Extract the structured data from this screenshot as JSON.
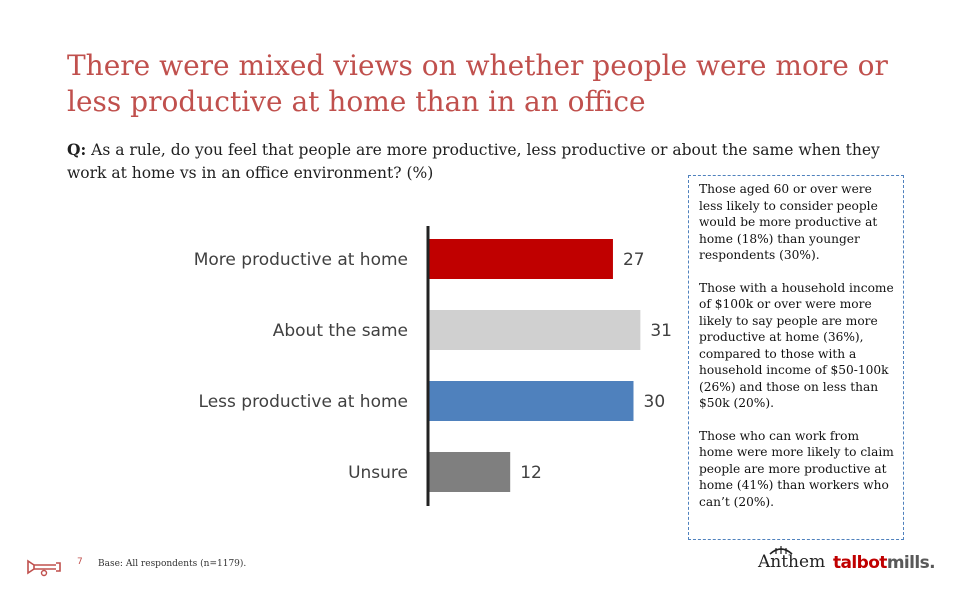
{
  "title": "There were mixed views on whether people were more or less productive at home than in an office",
  "question": {
    "prefix": "Q:",
    "text": "As a rule, do you feel that people are more productive, less productive or about the same when they work at home vs in an office environment? (%)"
  },
  "chart_data": {
    "type": "bar",
    "orientation": "horizontal",
    "categories": [
      "More productive at home",
      "About the same",
      "Less productive at home",
      "Unsure"
    ],
    "values": [
      27,
      31,
      30,
      12
    ],
    "colors": [
      "#c00000",
      "#d0d0d0",
      "#4f81bd",
      "#7f7f7f"
    ],
    "xlim": [
      0,
      35
    ],
    "grid": false,
    "title": "",
    "xlabel": "",
    "ylabel": ""
  },
  "note": {
    "paragraphs": [
      "Those aged 60 or over were less likely to consider people would be more productive at home (18%) than younger respondents (30%).",
      "Those with a household income of $100k or over were more likely to say people are more productive at home (36%), compared to those with a household income of $50-100k (26%) and those on less than $50k (20%).",
      "Those who can work from home were more likely to claim people are more productive at home (41%) than workers who can’t (20%)."
    ]
  },
  "footer": {
    "page_number": "7",
    "base_text": "Base: All respondents (n=1179).",
    "logo_anthem": "Anthem",
    "logo_talbot": "talbot",
    "logo_mills": "mills."
  },
  "icons": {
    "footer": "trumpet-icon"
  },
  "colors": {
    "accent": "#c0504d"
  }
}
